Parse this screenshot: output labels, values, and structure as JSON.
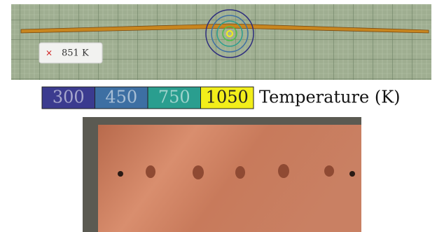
{
  "annotation": {
    "label": "851 K"
  },
  "colorbar": {
    "title": "Temperature (K)",
    "segments": [
      {
        "label": 300,
        "color": "#3b3b8f"
      },
      {
        "label": 450,
        "color": "#3d6fa3"
      },
      {
        "label": 750,
        "color": "#2a9e8f"
      },
      {
        "label": 1050,
        "color": "#f2ee1a"
      }
    ]
  }
}
